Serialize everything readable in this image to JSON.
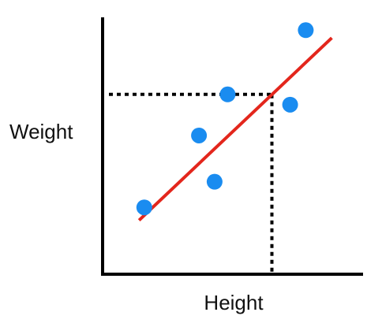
{
  "chart_data": {
    "type": "scatter",
    "title": "",
    "xlabel": "Height",
    "ylabel": "Weight",
    "xlim": [
      0,
      10
    ],
    "ylim": [
      0,
      10
    ],
    "grid": false,
    "points": [
      {
        "x": 1.6,
        "y": 2.6
      },
      {
        "x": 3.7,
        "y": 5.4
      },
      {
        "x": 4.3,
        "y": 3.6
      },
      {
        "x": 4.8,
        "y": 7.0
      },
      {
        "x": 7.2,
        "y": 6.6
      },
      {
        "x": 7.8,
        "y": 9.5
      }
    ],
    "trend_line": {
      "x": [
        1.4,
        8.8
      ],
      "y": [
        2.1,
        9.2
      ]
    },
    "reference_point": {
      "x": 6.5,
      "y": 7.0
    },
    "colors": {
      "points": "#1a8cf0",
      "trend_line": "#e3261c",
      "axes": "#000000",
      "reference_lines": "#000000"
    }
  }
}
